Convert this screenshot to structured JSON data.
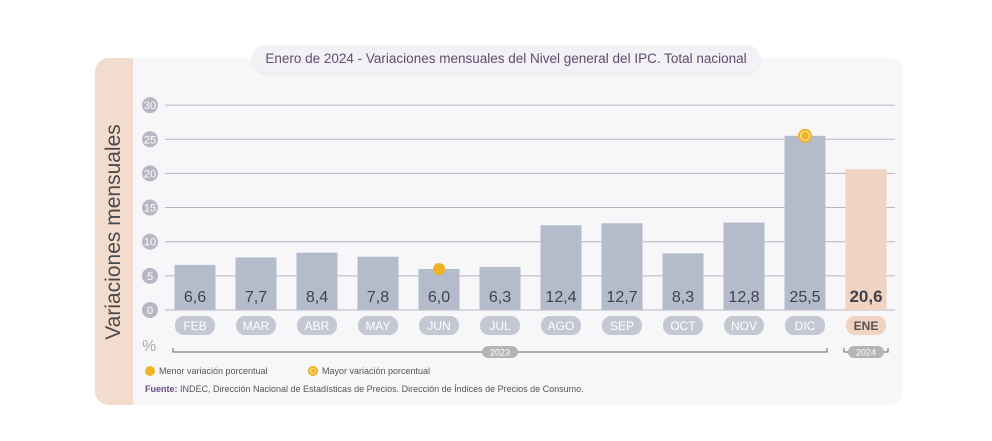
{
  "chart_data": {
    "type": "bar",
    "title_prefix": "Enero de 2024",
    "title": "Variaciones mensuales del Nivel general del IPC. Total nacional",
    "ylabel": "Variaciones mensuales",
    "unit": "%",
    "ylim": [
      0,
      30
    ],
    "yticks": [
      0,
      5,
      10,
      15,
      20,
      25,
      30
    ],
    "categories": [
      "FEB",
      "MAR",
      "ABR",
      "MAY",
      "JUN",
      "JUL",
      "AGO",
      "SEP",
      "OCT",
      "NOV",
      "DIC",
      "ENE"
    ],
    "values": [
      6.6,
      7.7,
      8.4,
      7.8,
      6.0,
      6.3,
      12.4,
      12.7,
      8.3,
      12.8,
      25.5,
      20.6
    ],
    "value_labels": [
      "6,6",
      "7,7",
      "8,4",
      "7,8",
      "6,0",
      "6,3",
      "12,4",
      "12,7",
      "8,3",
      "12,8",
      "25,5",
      "20,6"
    ],
    "groups": [
      {
        "label": "2023",
        "from": 0,
        "to": 10
      },
      {
        "label": "2024",
        "from": 11,
        "to": 11
      }
    ],
    "markers": {
      "min_index": 4,
      "max_index": 10
    },
    "colors": {
      "bar": "#b4bccb",
      "highlight": "#f0d3c0",
      "marker": "#f0b323"
    }
  },
  "legend": {
    "min": "Menor variación porcentual",
    "max": "Mayor variación porcentual"
  },
  "source": {
    "label": "Fuente:",
    "text": " INDEC, Dirección Nacional de Estadísticas de Precios. Dirección de Índices de Precios de Consumo."
  }
}
